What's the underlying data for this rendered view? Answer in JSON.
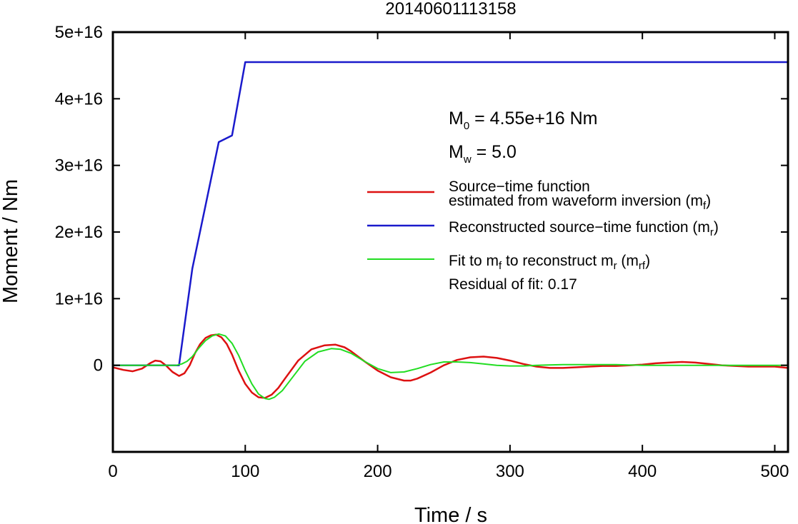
{
  "chart_data": {
    "type": "line",
    "title": "20140601113158",
    "xlabel": "Time / s",
    "ylabel": "Moment / Nm",
    "xlim": [
      0,
      510
    ],
    "ylim": [
      -1.3e+16,
      5e+16
    ],
    "xticks": [
      0,
      100,
      200,
      300,
      400,
      500
    ],
    "xtick_labels": [
      "0",
      "100",
      "200",
      "300",
      "400",
      "500"
    ],
    "yticks": [
      0,
      1e+16,
      2e+16,
      3e+16,
      4e+16,
      5e+16
    ],
    "ytick_labels": [
      "0",
      "1e+16",
      "2e+16",
      "3e+16",
      "4e+16",
      "5e+16"
    ],
    "grid": false,
    "legend_position": "right",
    "annotations": {
      "m0": {
        "prefix": "M",
        "sub": "0",
        "text": " = 4.55e+16 Nm"
      },
      "mw": {
        "prefix": "M",
        "sub": "w",
        "text": " = 5.0"
      },
      "residual": "Residual of fit: 0.17"
    },
    "series": [
      {
        "key": "mf",
        "color": "#dd1111",
        "legend": {
          "line1": "Source−time function",
          "line2": "estimated from waveform inversion (m",
          "sub": "f",
          "close": ")"
        },
        "x": [
          0,
          8,
          15,
          22,
          28,
          32,
          36,
          40,
          45,
          50,
          54,
          58,
          62,
          66,
          70,
          74,
          78,
          82,
          86,
          90,
          95,
          100,
          105,
          110,
          115,
          120,
          125,
          130,
          140,
          150,
          160,
          168,
          175,
          180,
          190,
          200,
          210,
          220,
          225,
          230,
          240,
          250,
          260,
          270,
          280,
          290,
          300,
          310,
          320,
          330,
          340,
          350,
          360,
          370,
          380,
          390,
          400,
          410,
          420,
          430,
          440,
          450,
          460,
          470,
          480,
          490,
          500,
          510
        ],
        "y": [
          -300000000000000.0,
          -700000000000000.0,
          -900000000000000.0,
          -500000000000000.0,
          300000000000000.0,
          700000000000000.0,
          600000000000000.0,
          0.0,
          -1000000000000000.0,
          -1600000000000000.0,
          -1200000000000000.0,
          0.0,
          1800000000000000.0,
          3200000000000000.0,
          4100000000000000.0,
          4500000000000000.0,
          4600000000000000.0,
          4200000000000000.0,
          3200000000000000.0,
          1600000000000000.0,
          -800000000000000.0,
          -2800000000000000.0,
          -4100000000000000.0,
          -4800000000000000.0,
          -4900000000000000.0,
          -4400000000000000.0,
          -3400000000000000.0,
          -2000000000000000.0,
          700000000000000.0,
          2400000000000000.0,
          3000000000000000.0,
          3100000000000000.0,
          2700000000000000.0,
          2100000000000000.0,
          600000000000000.0,
          -800000000000000.0,
          -1800000000000000.0,
          -2300000000000000.0,
          -2300000000000000.0,
          -2000000000000000.0,
          -1100000000000000.0,
          0.0,
          800000000000000.0,
          1200000000000000.0,
          1300000000000000.0,
          1100000000000000.0,
          700000000000000.0,
          200000000000000.0,
          -200000000000000.0,
          -400000000000000.0,
          -400000000000000.0,
          -300000000000000.0,
          -200000000000000.0,
          -100000000000000.0,
          -100000000000000.0,
          0.0,
          100000000000000.0,
          300000000000000.0,
          400000000000000.0,
          500000000000000.0,
          400000000000000.0,
          200000000000000.0,
          0.0,
          -100000000000000.0,
          -200000000000000.0,
          -200000000000000.0,
          -200000000000000.0,
          -400000000000000.0
        ]
      },
      {
        "key": "mr",
        "color": "#1a1acc",
        "legend": {
          "line1": "Reconstructed source−time function (m",
          "sub": "r",
          "close": ")"
        },
        "x": [
          0,
          50,
          60,
          70,
          80,
          90,
          100,
          510
        ],
        "y": [
          0,
          0,
          1.45e+16,
          2.4e+16,
          3.35e+16,
          3.45e+16,
          4.55e+16,
          4.55e+16
        ]
      },
      {
        "key": "mrf",
        "color": "#22dd22",
        "legend": {
          "line1a": "Fit to m",
          "sub1": "f",
          "line1b": " to reconstruct m",
          "sub2": "r",
          "line1c": " (m",
          "sub3": "rf",
          "close": ")"
        },
        "x": [
          0,
          40,
          48,
          52,
          56,
          60,
          65,
          70,
          75,
          80,
          85,
          90,
          95,
          100,
          105,
          110,
          115,
          118,
          122,
          128,
          135,
          145,
          155,
          165,
          172,
          180,
          190,
          200,
          210,
          220,
          230,
          240,
          250,
          260,
          270,
          280,
          290,
          300,
          310,
          320,
          340,
          360,
          380,
          400,
          420,
          440,
          460,
          480,
          500,
          510
        ],
        "y": [
          0,
          0,
          0.0,
          200000000000000.0,
          600000000000000.0,
          1300000000000000.0,
          2600000000000000.0,
          3700000000000000.0,
          4400000000000000.0,
          4700000000000000.0,
          4400000000000000.0,
          3300000000000000.0,
          1500000000000000.0,
          -800000000000000.0,
          -2800000000000000.0,
          -4300000000000000.0,
          -5000000000000000.0,
          -5100000000000000.0,
          -4800000000000000.0,
          -3800000000000000.0,
          -2000000000000000.0,
          600000000000000.0,
          2000000000000000.0,
          2500000000000000.0,
          2400000000000000.0,
          1800000000000000.0,
          600000000000000.0,
          -500000000000000.0,
          -1100000000000000.0,
          -1000000000000000.0,
          -500000000000000.0,
          100000000000000.0,
          500000000000000.0,
          500000000000000.0,
          400000000000000.0,
          200000000000000.0,
          0.0,
          -100000000000000.0,
          -100000000000000.0,
          0.0,
          100000000000000.0,
          100000000000000.0,
          100000000000000.0,
          0.0,
          0.0,
          0.0,
          0.0,
          0.0,
          0.0,
          0.0
        ]
      }
    ]
  }
}
